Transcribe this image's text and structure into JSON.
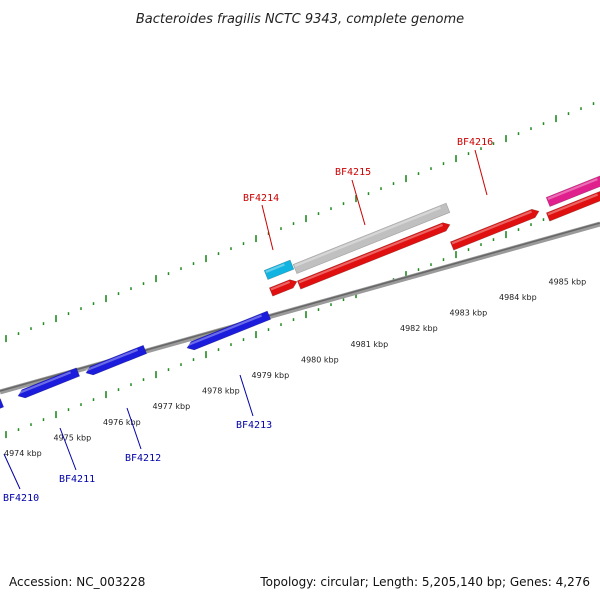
{
  "title": "Bacteroides fragilis NCTC 9343, complete genome",
  "accession": "Accession: NC_003228",
  "summary": "Topology: circular; Length: 5,205,140 bp; Genes: 4,276",
  "colors": {
    "forward_label": "#cc0000",
    "reverse_label": "#0000aa",
    "tick": "#228b22",
    "backbone": "#777777",
    "reverse_gene": "#1c1cdc",
    "forward_gene": "#e01010",
    "grey_gene": "#c0c0c0",
    "cyan_gene": "#11b4e0",
    "magenta_gene": "#e0208c"
  },
  "kbp_labels": [
    "4974 kbp",
    "4975 kbp",
    "4976 kbp",
    "4977 kbp",
    "4978 kbp",
    "4979 kbp",
    "4980 kbp",
    "4981 kbp",
    "4982 kbp",
    "4983 kbp",
    "4984 kbp",
    "4985 kbp"
  ],
  "genes": [
    {
      "label": "BF4210",
      "strand": "reverse"
    },
    {
      "label": "BF4211",
      "strand": "reverse"
    },
    {
      "label": "BF4212",
      "strand": "reverse"
    },
    {
      "label": "BF4213",
      "strand": "reverse"
    },
    {
      "label": "BF4214",
      "strand": "forward"
    },
    {
      "label": "BF4215",
      "strand": "forward"
    },
    {
      "label": "BF4216",
      "strand": "forward"
    }
  ]
}
